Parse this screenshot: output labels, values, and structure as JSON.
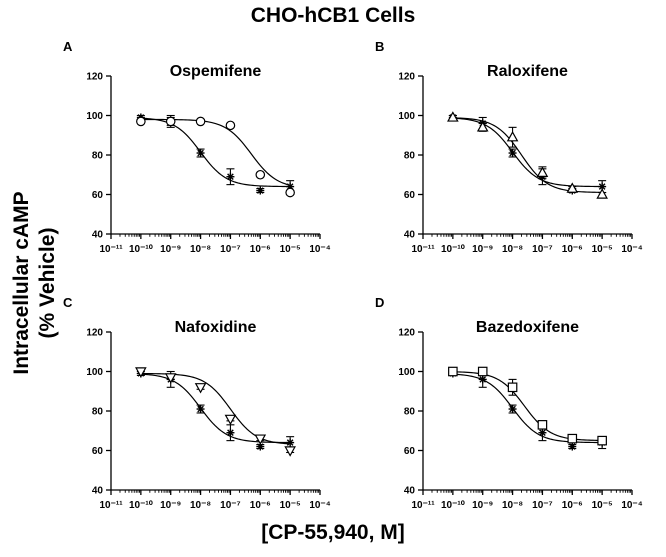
{
  "figure": {
    "title": "CHO-hCB1 Cells",
    "ylabel_line1": "Intracellular cAMP",
    "ylabel_line2": "(% Vehicle)",
    "xlabel": "[CP-55,940, M]"
  },
  "chart_data": [
    {
      "type": "scatter",
      "panel": "A",
      "title": "Ospemifene",
      "x_scale": "log",
      "xlim": [
        1e-11,
        0.0001
      ],
      "ylim": [
        40,
        120
      ],
      "yticks": [
        40,
        60,
        80,
        100,
        120
      ],
      "xticks": [
        "10⁻¹¹",
        "10⁻¹⁰",
        "10⁻⁹",
        "10⁻⁸",
        "10⁻⁷",
        "10⁻⁶",
        "10⁻⁵",
        "10⁻⁴"
      ],
      "x": [
        1e-10,
        1e-09,
        1e-08,
        1e-07,
        1e-06,
        1e-05
      ],
      "series": [
        {
          "marker": "asterisk",
          "values": [
            99,
            97,
            81,
            69,
            62,
            64
          ],
          "errors": [
            1,
            3,
            2,
            4,
            1,
            3
          ],
          "fit": {
            "top": 99,
            "bottom": 64,
            "logEC50": -8.0
          }
        },
        {
          "marker": "circle",
          "values": [
            97,
            97,
            97,
            95,
            70,
            61
          ],
          "errors": [
            1,
            2,
            1,
            1,
            1,
            1
          ],
          "fit": {
            "top": 98,
            "bottom": 63,
            "logEC50": -6.3
          }
        }
      ]
    },
    {
      "type": "scatter",
      "panel": "B",
      "title": "Raloxifene",
      "x_scale": "log",
      "xlim": [
        1e-11,
        0.0001
      ],
      "ylim": [
        40,
        120
      ],
      "yticks": [
        40,
        60,
        80,
        100,
        120
      ],
      "xticks": [
        "10⁻¹¹",
        "10⁻¹⁰",
        "10⁻⁹",
        "10⁻⁸",
        "10⁻⁷",
        "10⁻⁶",
        "10⁻⁵",
        "10⁻⁴"
      ],
      "x": [
        1e-10,
        1e-09,
        1e-08,
        1e-07,
        1e-06,
        1e-05
      ],
      "series": [
        {
          "marker": "asterisk",
          "values": [
            99,
            96,
            81,
            69,
            62,
            64
          ],
          "errors": [
            1,
            3,
            2,
            4,
            1,
            3
          ],
          "fit": {
            "top": 99,
            "bottom": 64,
            "logEC50": -8.0
          }
        },
        {
          "marker": "triangle-up",
          "values": [
            99,
            94,
            89,
            71,
            63,
            60
          ],
          "errors": [
            1,
            2,
            5,
            3,
            1,
            1
          ],
          "fit": {
            "top": 99,
            "bottom": 61,
            "logEC50": -7.7
          }
        }
      ]
    },
    {
      "type": "scatter",
      "panel": "C",
      "title": "Nafoxidine",
      "x_scale": "log",
      "xlim": [
        1e-11,
        0.0001
      ],
      "ylim": [
        40,
        120
      ],
      "yticks": [
        40,
        60,
        80,
        100,
        120
      ],
      "xticks": [
        "10⁻¹¹",
        "10⁻¹⁰",
        "10⁻⁹",
        "10⁻⁸",
        "10⁻⁷",
        "10⁻⁶",
        "10⁻⁵",
        "10⁻⁴"
      ],
      "x": [
        1e-10,
        1e-09,
        1e-08,
        1e-07,
        1e-06,
        1e-05
      ],
      "series": [
        {
          "marker": "asterisk",
          "values": [
            99,
            96,
            81,
            69,
            62,
            64
          ],
          "errors": [
            1,
            4,
            2,
            4,
            1,
            3
          ],
          "fit": {
            "top": 99,
            "bottom": 64,
            "logEC50": -8.0
          }
        },
        {
          "marker": "triangle-down",
          "values": [
            100,
            97,
            92,
            76,
            66,
            60
          ],
          "errors": [
            1,
            1,
            1,
            1,
            1,
            1
          ],
          "fit": {
            "top": 99,
            "bottom": 63,
            "logEC50": -7.0
          }
        }
      ]
    },
    {
      "type": "scatter",
      "panel": "D",
      "title": "Bazedoxifene",
      "x_scale": "log",
      "xlim": [
        1e-11,
        0.0001
      ],
      "ylim": [
        40,
        120
      ],
      "yticks": [
        40,
        60,
        80,
        100,
        120
      ],
      "xticks": [
        "10⁻¹¹",
        "10⁻¹⁰",
        "10⁻⁹",
        "10⁻⁸",
        "10⁻⁷",
        "10⁻⁶",
        "10⁻⁵",
        "10⁻⁴"
      ],
      "x": [
        1e-10,
        1e-09,
        1e-08,
        1e-07,
        1e-06,
        1e-05
      ],
      "series": [
        {
          "marker": "asterisk",
          "values": [
            99,
            96,
            81,
            69,
            62,
            64
          ],
          "errors": [
            1,
            4,
            2,
            4,
            1,
            3
          ],
          "fit": {
            "top": 99,
            "bottom": 64,
            "logEC50": -8.0
          }
        },
        {
          "marker": "square",
          "values": [
            100,
            100,
            92,
            73,
            66,
            65
          ],
          "errors": [
            1,
            1,
            4,
            1,
            1,
            1
          ],
          "fit": {
            "top": 100,
            "bottom": 65,
            "logEC50": -7.6
          }
        }
      ]
    }
  ]
}
